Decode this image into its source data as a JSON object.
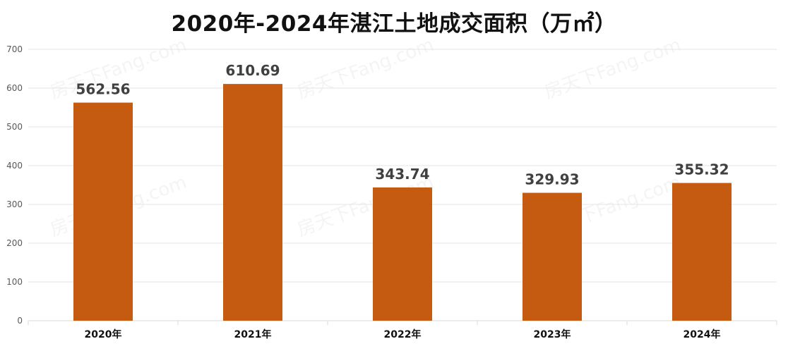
{
  "chart_data": {
    "type": "bar",
    "title": "2020年-2024年湛江土地成交面积（万㎡）",
    "categories": [
      "2020年",
      "2021年",
      "2022年",
      "2023年",
      "2024年"
    ],
    "values": [
      562.56,
      610.69,
      343.74,
      329.93,
      355.32
    ],
    "data_labels": [
      "562.56",
      "610.69",
      "343.74",
      "329.93",
      "355.32"
    ],
    "ylim": [
      0,
      700
    ],
    "yticks": [
      0,
      100,
      200,
      300,
      400,
      500,
      600,
      700
    ],
    "grid": true,
    "legend": "none",
    "bar_color": "#c55a11",
    "xlabel": "",
    "ylabel": ""
  },
  "watermark": "房天下Fang.com"
}
